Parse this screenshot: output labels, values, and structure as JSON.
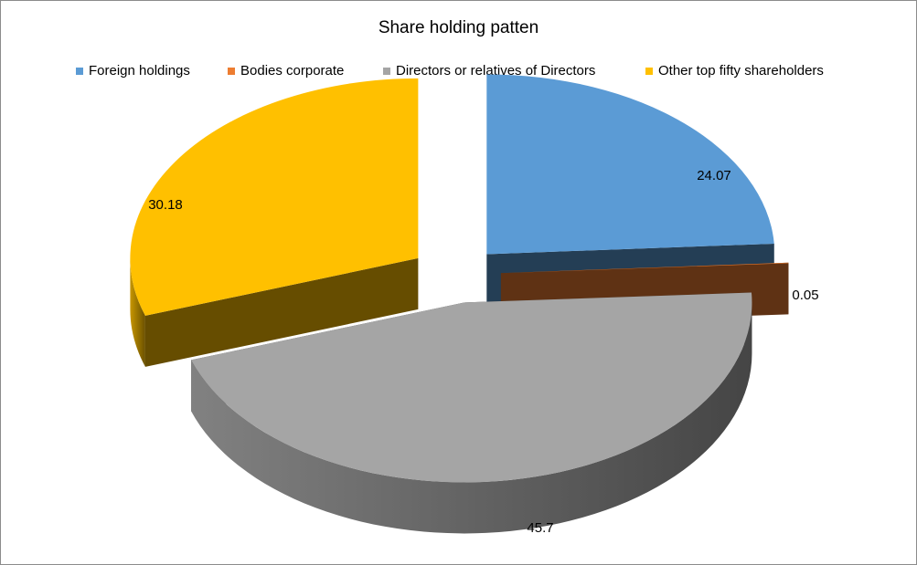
{
  "chart_data": {
    "type": "pie",
    "title": "Share holding patten",
    "legend_position": "top",
    "slices": [
      {
        "label": "Foreign holdings",
        "value": 24.07,
        "value_label": "24.07",
        "color": "#5b9bd5"
      },
      {
        "label": "Bodies corporate",
        "value": 0.05,
        "value_label": "0.05",
        "color": "#ed7d31"
      },
      {
        "label": "Directors or relatives of Directors",
        "value": 45.7,
        "value_label": "45.7",
        "color": "#a5a5a5"
      },
      {
        "label": "Other top fifty shareholders",
        "value": 30.18,
        "value_label": "30.18",
        "color": "#ffc000"
      }
    ]
  }
}
